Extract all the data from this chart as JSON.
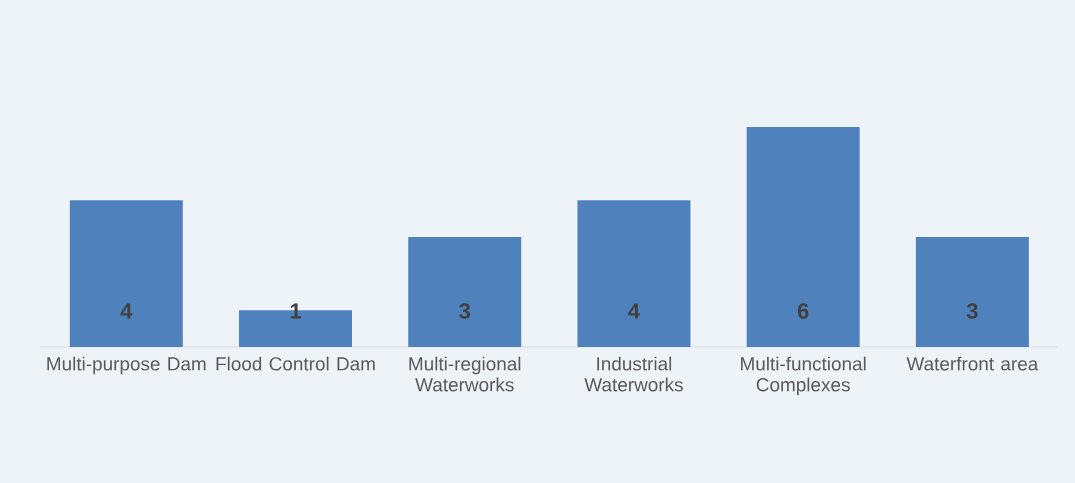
{
  "chart_data": {
    "type": "bar",
    "categories": [
      "Multi-purpose Dam",
      "Flood Control Dam",
      "Multi-regional Waterworks",
      "Industrial Waterworks",
      "Multi-functional Complexes",
      "Waterfront area"
    ],
    "values": [
      4,
      1,
      3,
      4,
      6,
      3
    ],
    "value_labels": [
      "4",
      "1",
      "3",
      "4",
      "6",
      "3"
    ],
    "color": "#4f81bd"
  }
}
